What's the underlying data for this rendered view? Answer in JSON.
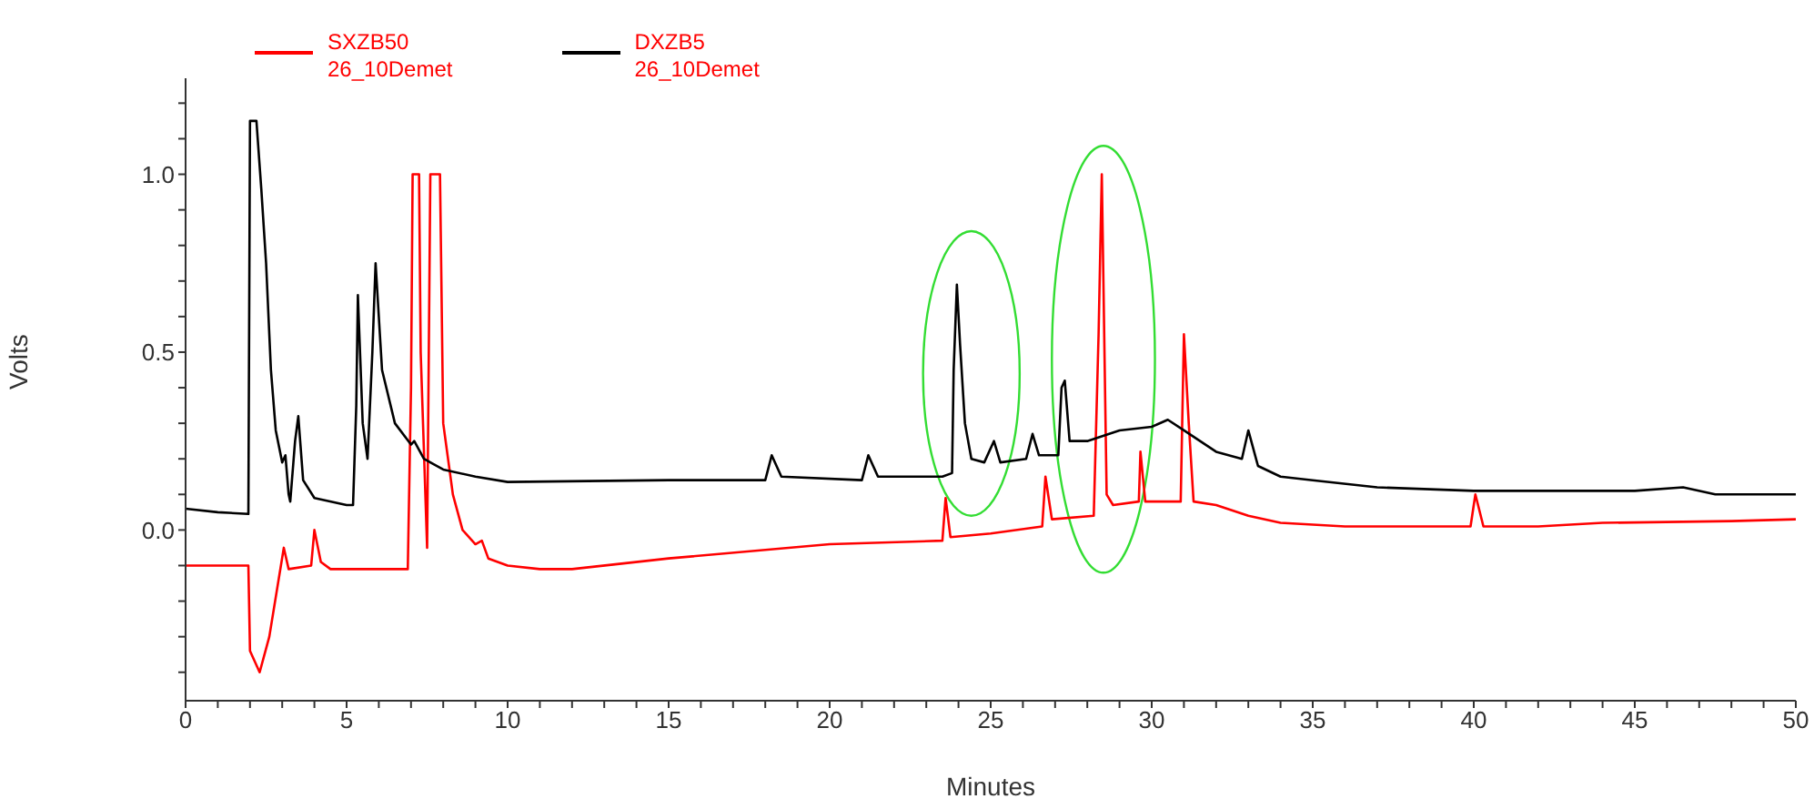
{
  "chart_data": {
    "type": "line",
    "xlabel": "Minutes",
    "ylabel": "Volts",
    "xlim": [
      0,
      50
    ],
    "ylim": [
      -0.48,
      1.27
    ],
    "xticks": [
      0,
      {
        "value": 1,
        "label": null
      },
      {
        "value": 2,
        "label": null
      },
      {
        "value": 3,
        "label": null
      },
      {
        "value": 4,
        "label": null
      },
      5,
      {
        "value": 6,
        "label": null
      },
      {
        "value": 7,
        "label": null
      },
      {
        "value": 8,
        "label": null
      },
      {
        "value": 9,
        "label": null
      },
      10,
      {
        "value": 11,
        "label": null
      },
      {
        "value": 12,
        "label": null
      },
      {
        "value": 13,
        "label": null
      },
      {
        "value": 14,
        "label": null
      },
      15,
      {
        "value": 16,
        "label": null
      },
      {
        "value": 17,
        "label": null
      },
      {
        "value": 18,
        "label": null
      },
      {
        "value": 19,
        "label": null
      },
      20,
      {
        "value": 21,
        "label": null
      },
      {
        "value": 22,
        "label": null
      },
      {
        "value": 23,
        "label": null
      },
      {
        "value": 24,
        "label": null
      },
      25,
      {
        "value": 26,
        "label": null
      },
      {
        "value": 27,
        "label": null
      },
      {
        "value": 28,
        "label": null
      },
      {
        "value": 29,
        "label": null
      },
      30,
      {
        "value": 31,
        "label": null
      },
      {
        "value": 32,
        "label": null
      },
      {
        "value": 33,
        "label": null
      },
      {
        "value": 34,
        "label": null
      },
      35,
      {
        "value": 36,
        "label": null
      },
      {
        "value": 37,
        "label": null
      },
      {
        "value": 38,
        "label": null
      },
      {
        "value": 39,
        "label": null
      },
      40,
      {
        "value": 41,
        "label": null
      },
      {
        "value": 42,
        "label": null
      },
      {
        "value": 43,
        "label": null
      },
      {
        "value": 44,
        "label": null
      },
      45,
      {
        "value": 46,
        "label": null
      },
      {
        "value": 47,
        "label": null
      },
      {
        "value": 48,
        "label": null
      },
      {
        "value": 49,
        "label": null
      },
      50
    ],
    "yticks": [
      {
        "value": -0.4,
        "label": null
      },
      {
        "value": -0.3,
        "label": null
      },
      {
        "value": -0.2,
        "label": null
      },
      {
        "value": -0.1,
        "label": null
      },
      {
        "value": 0,
        "label": "0.0"
      },
      {
        "value": 0.1,
        "label": null
      },
      {
        "value": 0.2,
        "label": null
      },
      {
        "value": 0.3,
        "label": null
      },
      {
        "value": 0.4,
        "label": null
      },
      {
        "value": 0.5,
        "label": "0.5"
      },
      {
        "value": 0.6,
        "label": null
      },
      {
        "value": 0.7,
        "label": null
      },
      {
        "value": 0.8,
        "label": null
      },
      {
        "value": 0.9,
        "label": null
      },
      {
        "value": 1,
        "label": "1.0"
      },
      {
        "value": 1.1,
        "label": null
      },
      {
        "value": 1.2,
        "label": null
      }
    ],
    "grid": false,
    "legend": "top left",
    "marker": "none",
    "line_style": "solid",
    "series": [
      {
        "name": "SXZB50 26_10Demet",
        "color": "#ff0000",
        "x": [
          0,
          1.95,
          2.0,
          2.3,
          2.6,
          3.05,
          3.2,
          3.9,
          4.0,
          4.2,
          4.5,
          6.9,
          7.0,
          7.05,
          7.25,
          7.3,
          7.5,
          7.6,
          7.9,
          8.0,
          8.3,
          8.6,
          9.0,
          9.2,
          9.4,
          10,
          11,
          12,
          15,
          20,
          23.5,
          23.6,
          23.75,
          25,
          26.6,
          26.7,
          26.9,
          28.2,
          28.35,
          28.45,
          28.6,
          28.8,
          29.6,
          29.65,
          29.8,
          30.9,
          31.0,
          31.15,
          31.3,
          32,
          33,
          34,
          36,
          39.9,
          40.05,
          40.3,
          42,
          44,
          48,
          50
        ],
        "values": [
          -0.1,
          -0.1,
          -0.34,
          -0.4,
          -0.3,
          -0.05,
          -0.11,
          -0.1,
          0.0,
          -0.09,
          -0.11,
          -0.11,
          0.4,
          1.0,
          1.0,
          0.5,
          -0.05,
          1.0,
          1.0,
          0.3,
          0.1,
          0.0,
          -0.04,
          -0.03,
          -0.08,
          -0.1,
          -0.11,
          -0.11,
          -0.08,
          -0.04,
          -0.03,
          0.09,
          -0.02,
          -0.01,
          0.01,
          0.15,
          0.03,
          0.04,
          0.55,
          1.0,
          0.1,
          0.07,
          0.08,
          0.22,
          0.08,
          0.08,
          0.55,
          0.3,
          0.08,
          0.07,
          0.04,
          0.02,
          0.01,
          0.01,
          0.1,
          0.01,
          0.01,
          0.02,
          0.025,
          0.03
        ]
      },
      {
        "name": "DXZB5 26_10Demet",
        "color": "#000000",
        "x": [
          0,
          1.0,
          1.95,
          2.0,
          2.2,
          2.35,
          2.5,
          2.65,
          2.8,
          3.0,
          3.1,
          3.2,
          3.25,
          3.4,
          3.5,
          3.65,
          4.0,
          5.0,
          5.2,
          5.3,
          5.35,
          5.5,
          5.65,
          5.8,
          5.9,
          6.1,
          6.5,
          7.0,
          7.1,
          7.4,
          8,
          9,
          10,
          15,
          18.0,
          18.2,
          18.5,
          21.0,
          21.2,
          21.5,
          23.5,
          23.8,
          23.85,
          23.95,
          24.05,
          24.2,
          24.4,
          24.8,
          25.1,
          25.3,
          26.1,
          26.3,
          26.5,
          27.1,
          27.2,
          27.3,
          27.45,
          28,
          29,
          30,
          30.5,
          31,
          32,
          32.8,
          33.0,
          33.3,
          34,
          35,
          37,
          40,
          45,
          46.5,
          47.5,
          50
        ],
        "values": [
          0.06,
          0.05,
          0.045,
          1.15,
          1.15,
          0.96,
          0.75,
          0.45,
          0.28,
          0.19,
          0.21,
          0.1,
          0.08,
          0.25,
          0.32,
          0.14,
          0.09,
          0.07,
          0.07,
          0.35,
          0.66,
          0.3,
          0.2,
          0.5,
          0.75,
          0.45,
          0.3,
          0.24,
          0.25,
          0.2,
          0.17,
          0.15,
          0.135,
          0.14,
          0.14,
          0.21,
          0.15,
          0.14,
          0.21,
          0.15,
          0.15,
          0.16,
          0.45,
          0.69,
          0.52,
          0.3,
          0.2,
          0.19,
          0.25,
          0.19,
          0.2,
          0.27,
          0.21,
          0.21,
          0.4,
          0.42,
          0.25,
          0.25,
          0.28,
          0.29,
          0.31,
          0.28,
          0.22,
          0.2,
          0.28,
          0.18,
          0.15,
          0.14,
          0.12,
          0.11,
          0.11,
          0.12,
          0.1,
          0.1
        ]
      }
    ]
  }
}
